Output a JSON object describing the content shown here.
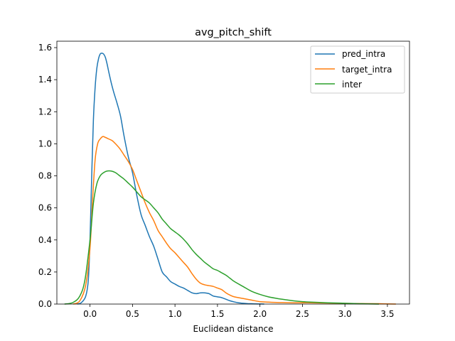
{
  "chart_data": {
    "type": "line",
    "title": "avg_pitch_shift",
    "xlabel": "Euclidean distance",
    "ylabel": "",
    "xlim": [
      -0.39,
      3.76
    ],
    "ylim": [
      0,
      1.64
    ],
    "xticks": [
      0.0,
      0.5,
      1.0,
      1.5,
      2.0,
      2.5,
      3.0,
      3.5
    ],
    "xtick_labels": [
      "0.0",
      "0.5",
      "1.0",
      "1.5",
      "2.0",
      "2.5",
      "3.0",
      "3.5"
    ],
    "yticks": [
      0.0,
      0.2,
      0.4,
      0.6,
      0.8,
      1.0,
      1.2,
      1.4,
      1.6
    ],
    "ytick_labels": [
      "0.0",
      "0.2",
      "0.4",
      "0.6",
      "0.8",
      "1.0",
      "1.2",
      "1.4",
      "1.6"
    ],
    "grid": false,
    "legend_position": "top-right",
    "series": [
      {
        "name": "pred_intra",
        "color": "#1f77b4",
        "x": [
          -0.15,
          -0.1,
          -0.05,
          -0.02,
          0.0,
          0.02,
          0.04,
          0.06,
          0.08,
          0.1,
          0.12,
          0.14,
          0.16,
          0.18,
          0.2,
          0.22,
          0.25,
          0.28,
          0.32,
          0.36,
          0.4,
          0.45,
          0.5,
          0.55,
          0.6,
          0.65,
          0.7,
          0.75,
          0.8,
          0.85,
          0.9,
          0.95,
          1.0,
          1.05,
          1.1,
          1.15,
          1.2,
          1.25,
          1.3,
          1.35,
          1.4,
          1.45,
          1.5,
          1.55,
          1.6,
          1.65,
          1.7,
          1.75,
          1.8,
          1.85,
          1.9,
          1.95,
          2.0,
          2.05
        ],
        "y": [
          0.0,
          0.01,
          0.05,
          0.15,
          0.4,
          0.8,
          1.15,
          1.35,
          1.47,
          1.53,
          1.56,
          1.565,
          1.56,
          1.54,
          1.5,
          1.45,
          1.38,
          1.32,
          1.25,
          1.17,
          1.05,
          0.92,
          0.82,
          0.68,
          0.56,
          0.49,
          0.42,
          0.36,
          0.28,
          0.2,
          0.17,
          0.14,
          0.125,
          0.11,
          0.1,
          0.085,
          0.07,
          0.065,
          0.07,
          0.07,
          0.065,
          0.05,
          0.045,
          0.04,
          0.03,
          0.02,
          0.013,
          0.008,
          0.005,
          0.003,
          0.002,
          0.001,
          0.0005,
          0.0
        ]
      },
      {
        "name": "target_intra",
        "color": "#ff7f0e",
        "x": [
          -0.2,
          -0.12,
          -0.05,
          0.0,
          0.03,
          0.06,
          0.09,
          0.12,
          0.15,
          0.18,
          0.22,
          0.26,
          0.3,
          0.35,
          0.4,
          0.45,
          0.5,
          0.55,
          0.6,
          0.65,
          0.7,
          0.75,
          0.8,
          0.85,
          0.9,
          0.95,
          1.0,
          1.05,
          1.1,
          1.15,
          1.2,
          1.25,
          1.3,
          1.35,
          1.4,
          1.45,
          1.5,
          1.55,
          1.6,
          1.65,
          1.7,
          1.8,
          1.9,
          2.0,
          2.1,
          2.2,
          2.3,
          2.4,
          2.5,
          2.6,
          2.8,
          3.0,
          3.2,
          3.4,
          3.6
        ],
        "y": [
          0.0,
          0.02,
          0.12,
          0.35,
          0.65,
          0.9,
          1.0,
          1.03,
          1.045,
          1.04,
          1.03,
          1.02,
          1.0,
          0.97,
          0.93,
          0.89,
          0.84,
          0.77,
          0.7,
          0.63,
          0.57,
          0.52,
          0.46,
          0.42,
          0.38,
          0.345,
          0.32,
          0.29,
          0.26,
          0.23,
          0.19,
          0.155,
          0.13,
          0.12,
          0.115,
          0.11,
          0.1,
          0.09,
          0.07,
          0.055,
          0.045,
          0.035,
          0.025,
          0.015,
          0.012,
          0.01,
          0.009,
          0.008,
          0.008,
          0.008,
          0.006,
          0.004,
          0.003,
          0.002,
          0.0
        ]
      },
      {
        "name": "inter",
        "color": "#2ca02c",
        "x": [
          -0.3,
          -0.2,
          -0.12,
          -0.06,
          0.0,
          0.04,
          0.08,
          0.12,
          0.16,
          0.2,
          0.25,
          0.3,
          0.35,
          0.4,
          0.45,
          0.5,
          0.55,
          0.6,
          0.65,
          0.7,
          0.75,
          0.8,
          0.85,
          0.9,
          0.95,
          1.0,
          1.05,
          1.1,
          1.15,
          1.2,
          1.25,
          1.3,
          1.35,
          1.4,
          1.45,
          1.5,
          1.55,
          1.6,
          1.65,
          1.7,
          1.8,
          1.9,
          2.0,
          2.1,
          2.2,
          2.3,
          2.4,
          2.5,
          2.6,
          2.8,
          3.0,
          3.2,
          3.4
        ],
        "y": [
          0.0,
          0.01,
          0.05,
          0.15,
          0.4,
          0.63,
          0.75,
          0.8,
          0.82,
          0.83,
          0.83,
          0.82,
          0.8,
          0.78,
          0.755,
          0.73,
          0.7,
          0.67,
          0.65,
          0.63,
          0.6,
          0.57,
          0.53,
          0.5,
          0.47,
          0.45,
          0.43,
          0.405,
          0.375,
          0.34,
          0.31,
          0.285,
          0.26,
          0.24,
          0.22,
          0.21,
          0.195,
          0.18,
          0.16,
          0.14,
          0.11,
          0.08,
          0.06,
          0.045,
          0.035,
          0.027,
          0.02,
          0.015,
          0.012,
          0.008,
          0.005,
          0.002,
          0.0
        ]
      }
    ]
  }
}
